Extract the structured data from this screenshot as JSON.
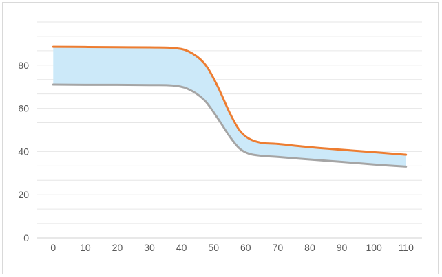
{
  "chart_data": {
    "type": "area",
    "x": [
      0,
      10,
      20,
      30,
      40,
      50,
      60,
      70,
      80,
      90,
      100,
      110
    ],
    "xticks": [
      "0",
      "10",
      "20",
      "30",
      "40",
      "50",
      "60",
      "70",
      "80",
      "90",
      "100",
      "110"
    ],
    "yticks": [
      "0",
      "20",
      "40",
      "60",
      "80"
    ],
    "ylim": [
      0,
      100
    ],
    "xlim": [
      -5,
      115
    ],
    "grid": true,
    "fill_color": "#cce9f9",
    "series": [
      {
        "role": "upper",
        "color": "#ed7d31",
        "points": [
          [
            0,
            88.5
          ],
          [
            10,
            88.4
          ],
          [
            20,
            88.3
          ],
          [
            30,
            88.2
          ],
          [
            37,
            88.0
          ],
          [
            42,
            86.5
          ],
          [
            47,
            81
          ],
          [
            51,
            71
          ],
          [
            55,
            58
          ],
          [
            58,
            50
          ],
          [
            61,
            46
          ],
          [
            65,
            44
          ],
          [
            70,
            43.5
          ],
          [
            80,
            42
          ],
          [
            90,
            40.8
          ],
          [
            100,
            39.7
          ],
          [
            110,
            38.5
          ]
        ]
      },
      {
        "role": "lower",
        "color": "#a5a5a5",
        "points": [
          [
            0,
            71
          ],
          [
            10,
            70.9
          ],
          [
            20,
            70.9
          ],
          [
            30,
            70.8
          ],
          [
            37,
            70.6
          ],
          [
            42,
            69
          ],
          [
            47,
            64
          ],
          [
            51,
            56
          ],
          [
            55,
            47
          ],
          [
            58,
            41.5
          ],
          [
            61,
            39
          ],
          [
            65,
            38
          ],
          [
            70,
            37.5
          ],
          [
            80,
            36.3
          ],
          [
            90,
            35.2
          ],
          [
            100,
            34
          ],
          [
            110,
            33
          ]
        ]
      }
    ]
  }
}
